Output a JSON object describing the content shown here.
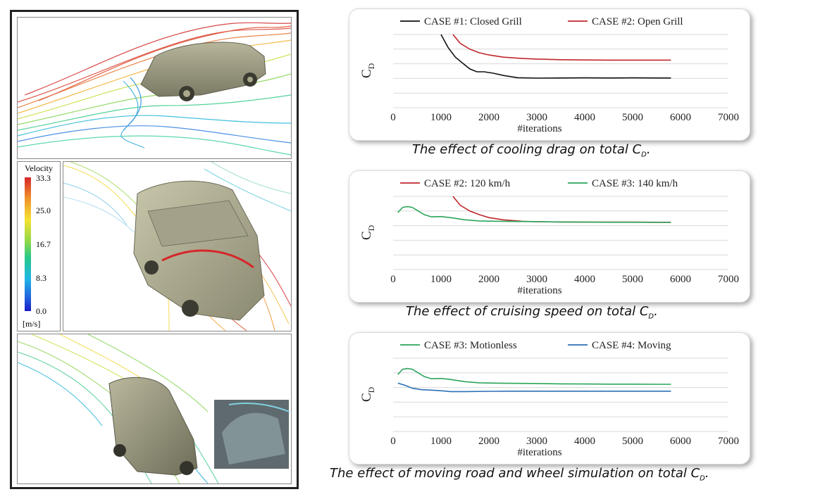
{
  "legend": {
    "title": "Velocity",
    "ticks": [
      "33.3",
      "25.0",
      "16.7",
      "8.3",
      "0.0"
    ],
    "unit": "[m/s]"
  },
  "captions": [
    {
      "text": "The effect of cooling drag on total C",
      "sub": "D",
      "end": "."
    },
    {
      "text": "The effect of cruising speed on total C",
      "sub": "D",
      "end": "."
    },
    {
      "text": "The effect of moving road and wheel simulation on total C",
      "sub": "D",
      "end": "."
    }
  ],
  "chart_data": [
    {
      "type": "line",
      "xlabel": "#iterations",
      "ylabel": "C",
      "ylabel_sub": "D",
      "xlim": [
        0,
        7000
      ],
      "ylim": [
        0,
        5
      ],
      "xticks": [
        0,
        1000,
        2000,
        3000,
        4000,
        5000,
        6000,
        7000
      ],
      "grid": true,
      "legend": "top",
      "series": [
        {
          "name": "CASE #1: Closed Grill",
          "color": "#111111",
          "x": [
            1000,
            1150,
            1300,
            1450,
            1600,
            1750,
            1900,
            2100,
            2300,
            2600,
            3000,
            3500,
            4000,
            4500,
            5000,
            5500,
            5800
          ],
          "y": [
            5.0,
            4.1,
            3.45,
            3.05,
            2.65,
            2.45,
            2.45,
            2.35,
            2.2,
            2.05,
            2.02,
            2.03,
            2.04,
            2.03,
            2.04,
            2.03,
            2.03
          ]
        },
        {
          "name": "CASE #2: Open Grill",
          "color": "#c0282c",
          "x": [
            1250,
            1400,
            1600,
            1800,
            2000,
            2300,
            2700,
            3000,
            3500,
            4000,
            4500,
            5000,
            5500,
            5800
          ],
          "y": [
            5.0,
            4.4,
            4.0,
            3.75,
            3.6,
            3.45,
            3.36,
            3.32,
            3.28,
            3.26,
            3.25,
            3.25,
            3.25,
            3.25
          ]
        }
      ]
    },
    {
      "type": "line",
      "xlabel": "#iterations",
      "ylabel": "C",
      "ylabel_sub": "D",
      "xlim": [
        0,
        7000
      ],
      "ylim": [
        0,
        5
      ],
      "xticks": [
        0,
        1000,
        2000,
        3000,
        4000,
        5000,
        6000,
        7000
      ],
      "grid": true,
      "legend": "top",
      "series": [
        {
          "name": "CASE #2: 120 km/h",
          "color": "#c0282c",
          "x": [
            1250,
            1400,
            1600,
            1800,
            2000,
            2300,
            2700,
            3000,
            3500,
            4000,
            4500,
            5000,
            5500,
            5800
          ],
          "y": [
            5.0,
            4.4,
            4.0,
            3.75,
            3.55,
            3.4,
            3.3,
            3.27,
            3.25,
            3.24,
            3.24,
            3.24,
            3.23,
            3.23
          ]
        },
        {
          "name": "CASE #3: 140 km/h",
          "color": "#2aa55a",
          "x": [
            100,
            200,
            300,
            400,
            500,
            650,
            800,
            1000,
            1200,
            1500,
            1800,
            2200,
            2800,
            3500,
            4000,
            4500,
            5000,
            5500,
            5800
          ],
          "y": [
            3.9,
            4.25,
            4.3,
            4.25,
            4.05,
            3.75,
            3.6,
            3.62,
            3.55,
            3.4,
            3.32,
            3.3,
            3.28,
            3.25,
            3.24,
            3.23,
            3.23,
            3.22,
            3.22
          ]
        }
      ]
    },
    {
      "type": "line",
      "xlabel": "#iterations",
      "ylabel": "C",
      "ylabel_sub": "D",
      "xlim": [
        0,
        7000
      ],
      "ylim": [
        0,
        5
      ],
      "xticks": [
        0,
        1000,
        2000,
        3000,
        4000,
        5000,
        6000,
        7000
      ],
      "grid": true,
      "legend": "top",
      "series": [
        {
          "name": "CASE #3: Motionless",
          "color": "#2aa55a",
          "x": [
            100,
            200,
            300,
            400,
            500,
            650,
            800,
            1000,
            1200,
            1500,
            1800,
            2200,
            2800,
            3500,
            4000,
            4500,
            5000,
            5500,
            5800
          ],
          "y": [
            3.9,
            4.25,
            4.3,
            4.25,
            4.05,
            3.75,
            3.6,
            3.62,
            3.55,
            3.4,
            3.32,
            3.3,
            3.28,
            3.25,
            3.24,
            3.23,
            3.23,
            3.22,
            3.22
          ]
        },
        {
          "name": "CASE #4: Moving",
          "color": "#2b6fb5",
          "x": [
            100,
            250,
            400,
            600,
            800,
            1000,
            1200,
            1500,
            2000,
            2500,
            3000,
            3500,
            4000,
            4500,
            5000,
            5500,
            5800
          ],
          "y": [
            3.3,
            3.15,
            2.95,
            2.85,
            2.82,
            2.78,
            2.72,
            2.72,
            2.74,
            2.75,
            2.75,
            2.75,
            2.75,
            2.75,
            2.75,
            2.75,
            2.75
          ]
        }
      ]
    }
  ]
}
